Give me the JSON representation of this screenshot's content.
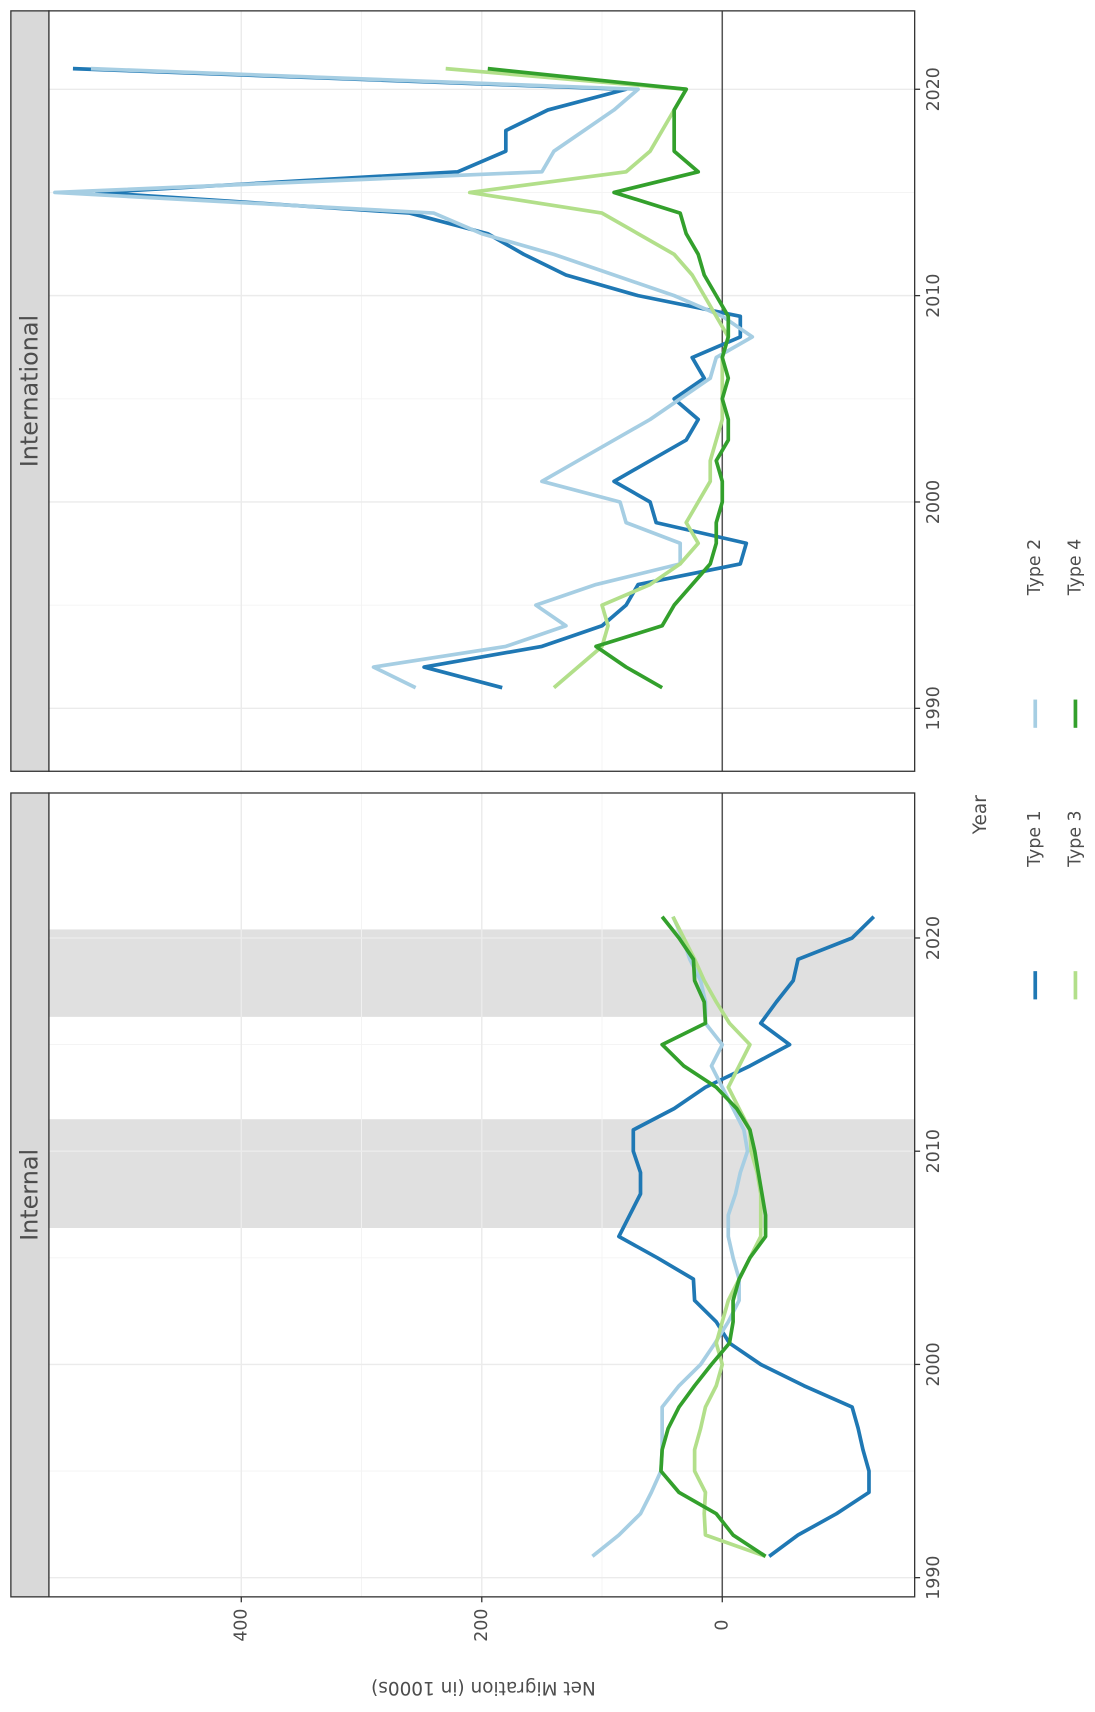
{
  "chart_data": {
    "type": "line",
    "x_label": "Year",
    "y_label": "Net Migration (in 1000s)",
    "x": [
      1991,
      1992,
      1993,
      1994,
      1995,
      1996,
      1997,
      1998,
      1999,
      2000,
      2001,
      2002,
      2003,
      2004,
      2005,
      2006,
      2007,
      2008,
      2009,
      2010,
      2011,
      2012,
      2013,
      2014,
      2015,
      2016,
      2017,
      2018,
      2019,
      2020,
      2021
    ],
    "xticks": [
      1990,
      2000,
      2010,
      2020
    ],
    "ylim": [
      -160,
      560
    ],
    "yticks": [
      0,
      200,
      400
    ],
    "reference_line": 0,
    "grid": true,
    "legend": "bottom",
    "facets": [
      {
        "title": "Internal",
        "xlim": [
          1989.1,
          2026.8
        ],
        "shading": [
          [
            2006.4,
            2011.5
          ],
          [
            2016.3,
            2020.4
          ]
        ]
      },
      {
        "title": "International",
        "xlim": [
          1986.95,
          2023.8
        ]
      }
    ],
    "series": [
      {
        "name": "Type 1",
        "color": "#1f78b4",
        "values": [
          [
            -39,
            -63,
            -95,
            -122,
            -122,
            -117,
            -113,
            -108,
            -68,
            -32,
            -6,
            5,
            23,
            24,
            54,
            86,
            77,
            68,
            68,
            74,
            74,
            40,
            14,
            -23,
            -56,
            -32,
            -45,
            -59,
            -63,
            -108,
            -126
          ],
          [
            183,
            248,
            150,
            100,
            80,
            70,
            -15,
            -20,
            55,
            60,
            90,
            60,
            30,
            20,
            40,
            15,
            25,
            -15,
            -15,
            70,
            130,
            165,
            195,
            260,
            520,
            220,
            180,
            180,
            145,
            80,
            540
          ]
        ]
      },
      {
        "name": "Type 2",
        "color": "#a6cee3",
        "values": [
          [
            108,
            86,
            68,
            59,
            51,
            50,
            50,
            50,
            36,
            18,
            6,
            -5,
            -14,
            -14,
            -9,
            -5,
            -5,
            -11,
            -15,
            -21,
            -18,
            -9,
            0,
            9,
            0,
            14,
            14,
            18,
            27,
            33,
            41
          ],
          [
            255,
            290,
            180,
            130,
            155,
            105,
            35,
            35,
            80,
            85,
            150,
            120,
            90,
            60,
            35,
            10,
            5,
            -25,
            0,
            40,
            90,
            140,
            200,
            240,
            555,
            150,
            140,
            115,
            90,
            70,
            525
          ]
        ]
      },
      {
        "name": "Type 3",
        "color": "#b2df8a",
        "values": [
          [
            -36,
            14,
            15,
            14,
            23,
            23,
            18,
            14,
            5,
            0,
            5,
            0,
            -5,
            -14,
            -23,
            -32,
            -32,
            -32,
            -29,
            -24,
            -23,
            -14,
            -5,
            -14,
            -23,
            -6,
            5,
            15,
            23,
            32,
            41
          ],
          [
            140,
            120,
            100,
            95,
            100,
            60,
            35,
            20,
            30,
            20,
            10,
            10,
            5,
            0,
            0,
            0,
            0,
            -5,
            5,
            15,
            25,
            40,
            70,
            100,
            210,
            80,
            60,
            50,
            40,
            30,
            230
          ]
        ]
      },
      {
        "name": "Type 4",
        "color": "#33a02c",
        "values": [
          [
            -36,
            -9,
            5,
            36,
            51,
            50,
            45,
            36,
            23,
            9,
            -6,
            -9,
            -9,
            -14,
            -23,
            -36,
            -36,
            -33,
            -30,
            -27,
            -23,
            -12,
            5,
            32,
            50,
            14,
            15,
            23,
            24,
            36,
            50
          ],
          [
            50,
            80,
            105,
            50,
            40,
            25,
            10,
            5,
            5,
            0,
            0,
            5,
            -5,
            -5,
            0,
            -5,
            0,
            -5,
            -5,
            5,
            15,
            20,
            30,
            35,
            90,
            20,
            40,
            40,
            40,
            30,
            195
          ]
        ]
      }
    ]
  }
}
